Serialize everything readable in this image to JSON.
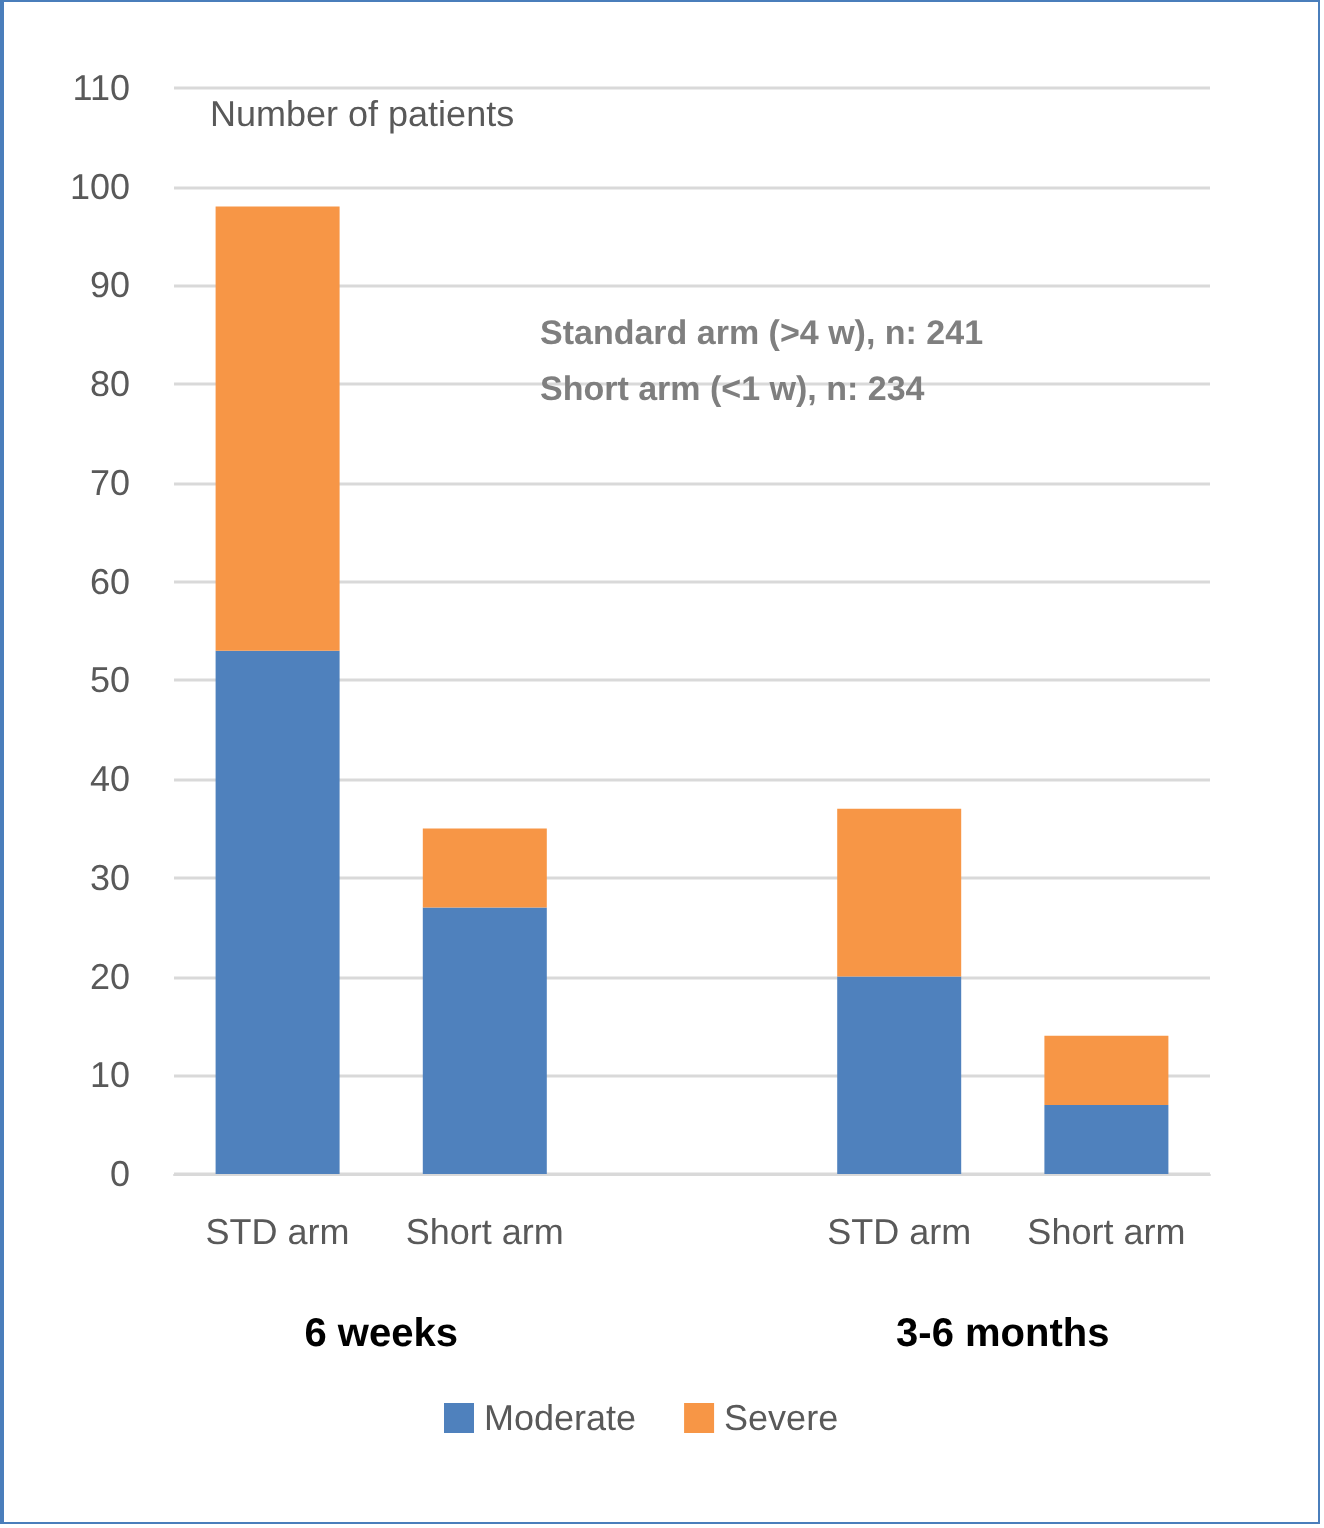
{
  "chart_data": {
    "type": "bar",
    "stacked": true,
    "ylabel": "Number of patients",
    "categories": [
      "STD arm",
      "Short arm",
      null,
      "STD arm",
      "Short arm"
    ],
    "series": [
      {
        "name": "Moderate",
        "color": "#4f81bd",
        "values": [
          53,
          27,
          null,
          20,
          7
        ]
      },
      {
        "name": "Severe",
        "color": "#f79646",
        "values": [
          45,
          8,
          null,
          17,
          7
        ]
      }
    ],
    "ylim": [
      0,
      110
    ],
    "yticks": [
      0,
      10,
      20,
      30,
      40,
      50,
      60,
      70,
      80,
      90,
      100,
      110
    ],
    "grid": "y",
    "legend": "bottom",
    "annotations": [
      "Standard arm (>4 w), n: 241",
      "Short arm (<1 w), n: 234",
      "6 weeks",
      "3-6 months"
    ]
  }
}
